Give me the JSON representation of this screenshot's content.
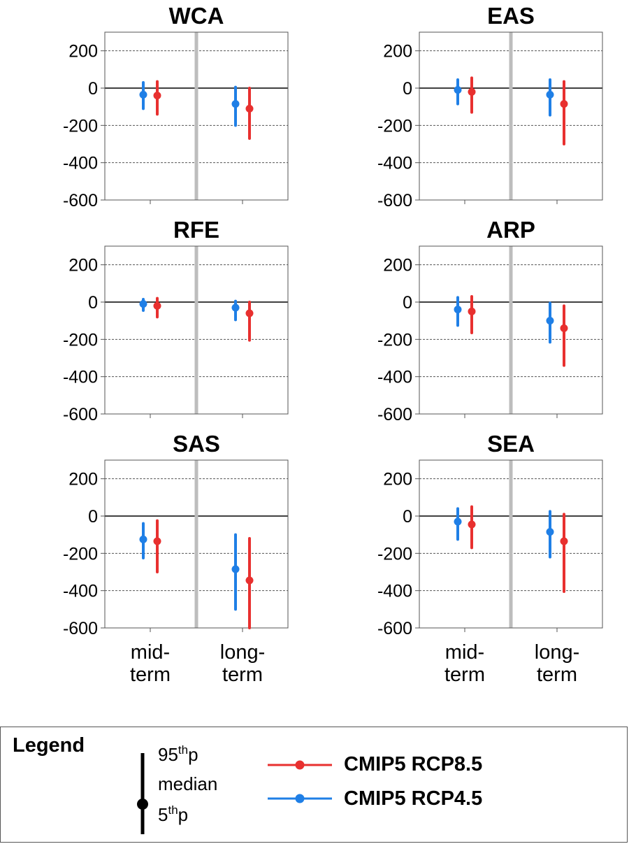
{
  "chart_data": {
    "type": "errorbar",
    "categories": [
      "mid-\nterm",
      "long-\nterm"
    ],
    "ylim": [
      -600,
      300
    ],
    "yticks": [
      200,
      0,
      -200,
      -400,
      -600
    ],
    "grid": true,
    "colors": {
      "CMIP5 RCP8.5": "#e8302f",
      "CMIP5 RCP4.5": "#1f7fe6"
    },
    "panels": [
      {
        "title": "WCA",
        "series": [
          {
            "name": "CMIP5 RCP4.5",
            "points": [
              {
                "median": -35,
                "p5": -110,
                "p95": 30
              },
              {
                "median": -85,
                "p5": -200,
                "p95": 5
              }
            ]
          },
          {
            "name": "CMIP5 RCP8.5",
            "points": [
              {
                "median": -40,
                "p5": -140,
                "p95": 35
              },
              {
                "median": -110,
                "p5": -270,
                "p95": 0
              }
            ]
          }
        ]
      },
      {
        "title": "EAS",
        "series": [
          {
            "name": "CMIP5 RCP4.5",
            "points": [
              {
                "median": -10,
                "p5": -85,
                "p95": 45
              },
              {
                "median": -35,
                "p5": -145,
                "p95": 45
              }
            ]
          },
          {
            "name": "CMIP5 RCP8.5",
            "points": [
              {
                "median": -20,
                "p5": -130,
                "p95": 55
              },
              {
                "median": -85,
                "p5": -300,
                "p95": 35
              }
            ]
          }
        ]
      },
      {
        "title": "RFE",
        "series": [
          {
            "name": "CMIP5 RCP4.5",
            "points": [
              {
                "median": -10,
                "p5": -45,
                "p95": 15
              },
              {
                "median": -30,
                "p5": -95,
                "p95": 5
              }
            ]
          },
          {
            "name": "CMIP5 RCP8.5",
            "points": [
              {
                "median": -20,
                "p5": -80,
                "p95": 20
              },
              {
                "median": -60,
                "p5": -205,
                "p95": 0
              }
            ]
          }
        ]
      },
      {
        "title": "ARP",
        "series": [
          {
            "name": "CMIP5 RCP4.5",
            "points": [
              {
                "median": -40,
                "p5": -125,
                "p95": 25
              },
              {
                "median": -100,
                "p5": -215,
                "p95": -5
              }
            ]
          },
          {
            "name": "CMIP5 RCP8.5",
            "points": [
              {
                "median": -50,
                "p5": -165,
                "p95": 30
              },
              {
                "median": -140,
                "p5": -340,
                "p95": -20
              }
            ]
          }
        ]
      },
      {
        "title": "SAS",
        "series": [
          {
            "name": "CMIP5 RCP4.5",
            "points": [
              {
                "median": -125,
                "p5": -225,
                "p95": -40
              },
              {
                "median": -285,
                "p5": -500,
                "p95": -100
              }
            ]
          },
          {
            "name": "CMIP5 RCP8.5",
            "points": [
              {
                "median": -135,
                "p5": -300,
                "p95": -25
              },
              {
                "median": -345,
                "p5": -600,
                "p95": -120
              }
            ]
          }
        ]
      },
      {
        "title": "SEA",
        "series": [
          {
            "name": "CMIP5 RCP4.5",
            "points": [
              {
                "median": -30,
                "p5": -125,
                "p95": 40
              },
              {
                "median": -85,
                "p5": -220,
                "p95": 25
              }
            ]
          },
          {
            "name": "CMIP5 RCP8.5",
            "points": [
              {
                "median": -45,
                "p5": -170,
                "p95": 50
              },
              {
                "median": -135,
                "p5": -405,
                "p95": 10
              }
            ]
          }
        ]
      }
    ]
  },
  "legend": {
    "title": "Legend",
    "key_top": "95",
    "key_top_suffix": "th",
    "key_top_unit": "p",
    "key_mid": "median",
    "key_bottom": "5",
    "key_bottom_suffix": "th",
    "key_bottom_unit": "p",
    "series": [
      {
        "label": "CMIP5 RCP8.5",
        "color": "#e8302f"
      },
      {
        "label": "CMIP5 RCP4.5",
        "color": "#1f7fe6"
      }
    ]
  }
}
